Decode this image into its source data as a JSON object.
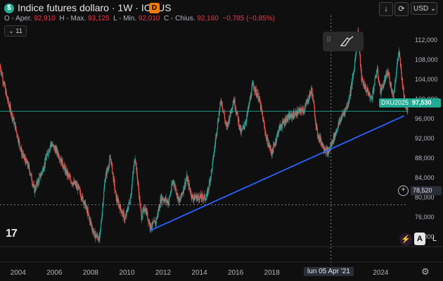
{
  "header": {
    "symbol_badge": "$",
    "title": "Indice futures dollaro · 1W · ICEUS",
    "exchange_badge": "D",
    "ohlc": {
      "open_label": "O - Aper.",
      "open": "92,910",
      "high_label": "H - Max.",
      "high": "93,125",
      "low_label": "L - Min.",
      "low": "92,010",
      "close_label": "C - Chius.",
      "close": "92,160",
      "change": "−0,785 (−0,85%)"
    },
    "collapse_label": "11",
    "currency": "USD",
    "arrow_icon": "download-arrow-icon",
    "refresh_icon": "refresh-icon"
  },
  "logo": "17",
  "y_axis_labels": [
    "112,000",
    "108,000",
    "104,000",
    "100,000",
    "96,000",
    "92,000",
    "88,000",
    "84,000",
    "80,000",
    "76,000",
    "72,000"
  ],
  "x_axis_labels": [
    "2004",
    "2006",
    "2008",
    "2010",
    "2012",
    "2014",
    "2016",
    "2018",
    "2024"
  ],
  "crosshair": {
    "date_label": "lun 05 Apr '21",
    "price_label": "78,520"
  },
  "price_tags": {
    "symbol": "DXU2025",
    "last": "97,530"
  },
  "colors": {
    "up": "#26a69a",
    "down": "#ef5350",
    "trendline": "#2962ff",
    "price_line": "#22ab94"
  },
  "chart_data": {
    "type": "candlestick",
    "x_range": [
      2003,
      2025.5
    ],
    "y_range": [
      70.0,
      117.0
    ],
    "trendline": {
      "from": {
        "x": 2011.25,
        "y": 73.2
      },
      "to": {
        "x": 2025.3,
        "y": 96.6
      }
    },
    "series_path": [
      [
        2003.0,
        106.8
      ],
      [
        2003.4,
        100
      ],
      [
        2003.8,
        95
      ],
      [
        2004.2,
        89
      ],
      [
        2004.6,
        86
      ],
      [
        2004.9,
        81.5
      ],
      [
        2005.3,
        85
      ],
      [
        2005.8,
        91
      ],
      [
        2006.2,
        89
      ],
      [
        2006.6,
        85.5
      ],
      [
        2006.9,
        83.5
      ],
      [
        2007.3,
        82
      ],
      [
        2007.7,
        78.5
      ],
      [
        2007.9,
        76
      ],
      [
        2008.2,
        72.5
      ],
      [
        2008.5,
        71.5
      ],
      [
        2008.8,
        84
      ],
      [
        2009.1,
        88
      ],
      [
        2009.4,
        80
      ],
      [
        2009.9,
        75.5
      ],
      [
        2010.2,
        80
      ],
      [
        2010.45,
        88.5
      ],
      [
        2010.8,
        76
      ],
      [
        2011.0,
        78
      ],
      [
        2011.3,
        74
      ],
      [
        2011.6,
        75
      ],
      [
        2011.9,
        80
      ],
      [
        2012.3,
        79
      ],
      [
        2012.55,
        83.5
      ],
      [
        2012.9,
        79
      ],
      [
        2013.3,
        84
      ],
      [
        2013.6,
        80
      ],
      [
        2014.0,
        80
      ],
      [
        2014.4,
        80
      ],
      [
        2014.7,
        86
      ],
      [
        2015.0,
        95
      ],
      [
        2015.2,
        100
      ],
      [
        2015.5,
        94
      ],
      [
        2015.9,
        100
      ],
      [
        2016.3,
        93
      ],
      [
        2016.6,
        96
      ],
      [
        2016.95,
        103
      ],
      [
        2017.3,
        100
      ],
      [
        2017.7,
        92
      ],
      [
        2018.0,
        89
      ],
      [
        2018.4,
        94
      ],
      [
        2018.8,
        96
      ],
      [
        2019.3,
        97
      ],
      [
        2019.8,
        98
      ],
      [
        2020.2,
        102
      ],
      [
        2020.5,
        93
      ],
      [
        2020.9,
        90
      ],
      [
        2021.1,
        89
      ],
      [
        2021.4,
        92
      ],
      [
        2021.8,
        96
      ],
      [
        2022.2,
        99
      ],
      [
        2022.5,
        105
      ],
      [
        2022.75,
        113.5
      ],
      [
        2022.95,
        104
      ],
      [
        2023.2,
        102
      ],
      [
        2023.5,
        100
      ],
      [
        2023.8,
        106
      ],
      [
        2024.0,
        101.5
      ],
      [
        2024.4,
        105.5
      ],
      [
        2024.7,
        100.5
      ],
      [
        2025.0,
        109.8
      ],
      [
        2025.3,
        100
      ],
      [
        2025.5,
        97.5
      ]
    ],
    "crosshair_x": 2021.26,
    "crosshair_y": 78.52,
    "last_price": 97.53
  }
}
